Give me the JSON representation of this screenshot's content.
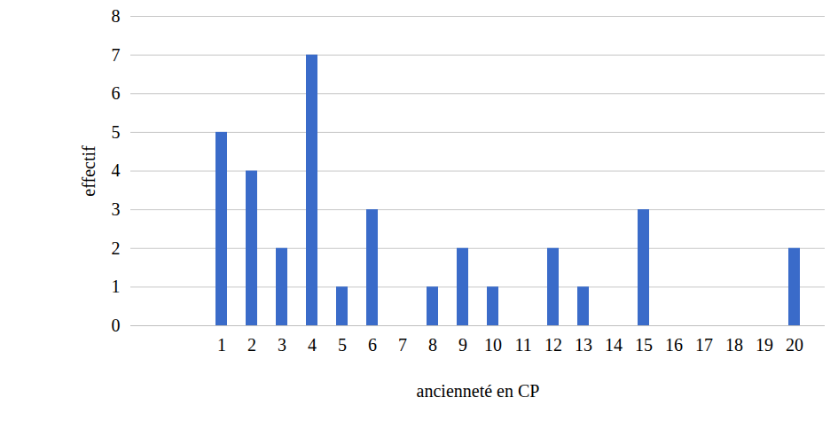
{
  "chart_data": {
    "type": "bar",
    "x_label": "ancienneté en CP",
    "y_label": "effectif",
    "categories": [
      null,
      null,
      "1",
      "2",
      "3",
      "4",
      "5",
      "6",
      "7",
      "8",
      "9",
      "10",
      "11",
      "12",
      "13",
      "14",
      "15",
      "16",
      "17",
      "18",
      "19",
      "20"
    ],
    "values": [
      null,
      null,
      5,
      4,
      2,
      7,
      1,
      3,
      0,
      1,
      2,
      1,
      0,
      2,
      1,
      0,
      3,
      0,
      0,
      0,
      0,
      2
    ],
    "color": "#3a6bc9",
    "ylim": [
      0,
      8
    ],
    "yticks": [
      0,
      1,
      2,
      3,
      4,
      5,
      6,
      7,
      8
    ],
    "grid": true
  }
}
